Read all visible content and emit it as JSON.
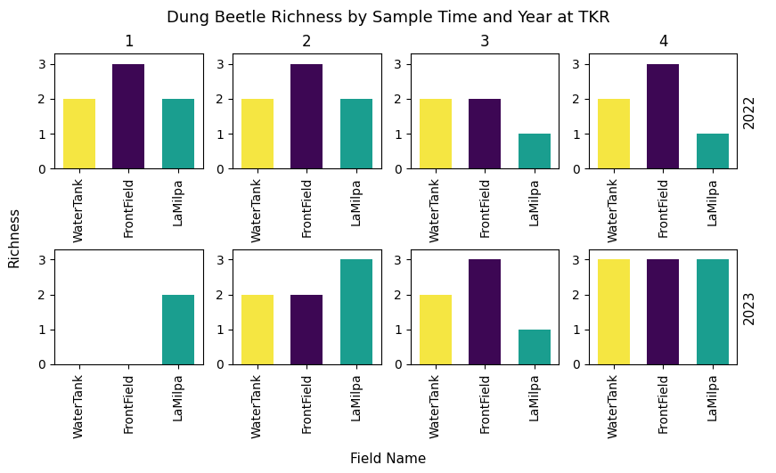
{
  "title": "Dung Beetle Richness by Sample Time and Year at TKR",
  "xlabel": "Field Name",
  "ylabel": "Richness",
  "chart_data": [
    {
      "type": "bar",
      "title": "1",
      "categories": [
        "WaterTank",
        "FrontField",
        "LaMilpa"
      ],
      "values": [
        2,
        3,
        2
      ],
      "colors": [
        "#F5E642",
        "#3D0754",
        "#1A9E8F"
      ],
      "ylim": [
        0,
        3.3
      ],
      "yticks": [
        0,
        1,
        2,
        3
      ]
    },
    {
      "type": "bar",
      "title": "2",
      "categories": [
        "WaterTank",
        "FrontField",
        "LaMilpa"
      ],
      "values": [
        2,
        3,
        2
      ],
      "colors": [
        "#F5E642",
        "#3D0754",
        "#1A9E8F"
      ],
      "ylim": [
        0,
        3.3
      ],
      "yticks": [
        0,
        1,
        2,
        3
      ]
    },
    {
      "type": "bar",
      "title": "3",
      "categories": [
        "WaterTank",
        "FrontField",
        "LaMilpa"
      ],
      "values": [
        2,
        2,
        1
      ],
      "colors": [
        "#F5E642",
        "#3D0754",
        "#1A9E8F"
      ],
      "ylim": [
        0,
        3.3
      ],
      "yticks": [
        0,
        1,
        2,
        3
      ]
    },
    {
      "type": "bar",
      "title": "4",
      "categories": [
        "WaterTank",
        "FrontField",
        "LaMilpa"
      ],
      "values": [
        2,
        3,
        1
      ],
      "colors": [
        "#F5E642",
        "#3D0754",
        "#1A9E8F"
      ],
      "ylim": [
        0,
        3.3
      ],
      "yticks": [
        0,
        1,
        2,
        3
      ],
      "annotations": [
        "2022"
      ]
    },
    {
      "type": "bar",
      "categories": [
        "WaterTank",
        "FrontField",
        "LaMilpa"
      ],
      "values": [
        0,
        0,
        2
      ],
      "colors": [
        "#F5E642",
        "#3D0754",
        "#1A9E8F"
      ],
      "ylim": [
        0,
        3.3
      ],
      "yticks": [
        0,
        1,
        2,
        3
      ]
    },
    {
      "type": "bar",
      "categories": [
        "WaterTank",
        "FrontField",
        "LaMilpa"
      ],
      "values": [
        2,
        2,
        3
      ],
      "colors": [
        "#F5E642",
        "#3D0754",
        "#1A9E8F"
      ],
      "ylim": [
        0,
        3.3
      ],
      "yticks": [
        0,
        1,
        2,
        3
      ]
    },
    {
      "type": "bar",
      "categories": [
        "WaterTank",
        "FrontField",
        "LaMilpa"
      ],
      "values": [
        2,
        3,
        1
      ],
      "colors": [
        "#F5E642",
        "#3D0754",
        "#1A9E8F"
      ],
      "ylim": [
        0,
        3.3
      ],
      "yticks": [
        0,
        1,
        2,
        3
      ]
    },
    {
      "type": "bar",
      "categories": [
        "WaterTank",
        "FrontField",
        "LaMilpa"
      ],
      "values": [
        3,
        3,
        3
      ],
      "colors": [
        "#F5E642",
        "#3D0754",
        "#1A9E8F"
      ],
      "ylim": [
        0,
        3.3
      ],
      "yticks": [
        0,
        1,
        2,
        3
      ],
      "annotations": [
        "2023"
      ]
    }
  ]
}
